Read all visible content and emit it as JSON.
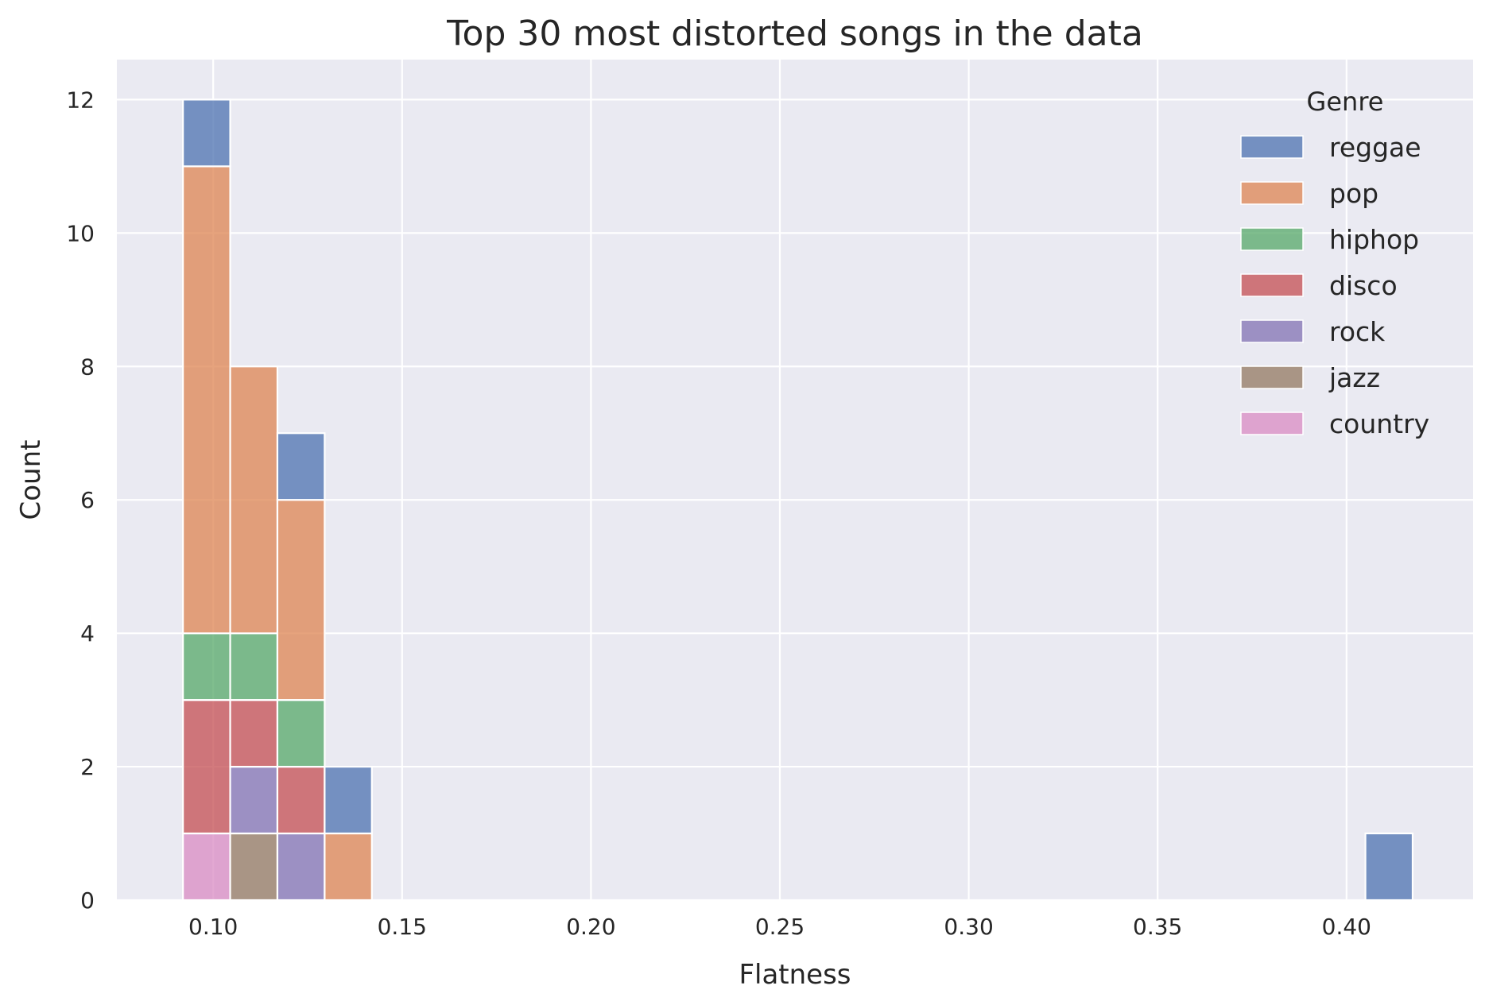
{
  "chart_data": {
    "type": "bar",
    "subtype": "stacked-histogram",
    "title": "Top 30 most distorted songs in the data",
    "xlabel": "Flatness",
    "ylabel": "Count",
    "xlim": [
      0.0745,
      0.4335
    ],
    "ylim": [
      0,
      12.6
    ],
    "xticks": [
      "0.10",
      "0.15",
      "0.20",
      "0.25",
      "0.30",
      "0.35",
      "0.40"
    ],
    "xtick_values": [
      0.1,
      0.15,
      0.2,
      0.25,
      0.3,
      0.35,
      0.4
    ],
    "yticks": [
      "0",
      "2",
      "4",
      "6",
      "8",
      "10",
      "12"
    ],
    "ytick_values": [
      0,
      2,
      4,
      6,
      8,
      10,
      12
    ],
    "grid": true,
    "legend": {
      "title": "Genre",
      "position": "top-right"
    },
    "bins": [
      {
        "x0": 0.092,
        "x1": 0.1045,
        "counts": {
          "country": 1,
          "disco": 2,
          "hiphop": 1,
          "pop": 7,
          "reggae": 1
        }
      },
      {
        "x0": 0.1045,
        "x1": 0.117,
        "counts": {
          "jazz": 1,
          "rock": 1,
          "disco": 1,
          "hiphop": 1,
          "pop": 4
        }
      },
      {
        "x0": 0.117,
        "x1": 0.1295,
        "counts": {
          "rock": 1,
          "disco": 1,
          "hiphop": 1,
          "pop": 3,
          "reggae": 1
        }
      },
      {
        "x0": 0.1295,
        "x1": 0.142,
        "counts": {
          "pop": 1,
          "reggae": 1
        }
      },
      {
        "x0": 0.405,
        "x1": 0.4175,
        "counts": {
          "reggae": 1
        }
      }
    ],
    "series": [
      {
        "name": "reggae",
        "color": "#4c72b0"
      },
      {
        "name": "pop",
        "color": "#dd8452"
      },
      {
        "name": "hiphop",
        "color": "#55a868"
      },
      {
        "name": "disco",
        "color": "#c44e52"
      },
      {
        "name": "rock",
        "color": "#8172b3"
      },
      {
        "name": "jazz",
        "color": "#937860"
      },
      {
        "name": "country",
        "color": "#da8bc3"
      }
    ],
    "stack_order": [
      "country",
      "jazz",
      "rock",
      "disco",
      "hiphop",
      "pop",
      "reggae"
    ],
    "plot_background": "#eaeaf2",
    "grid_color": "#ffffff",
    "bar_opacity": 0.75
  }
}
